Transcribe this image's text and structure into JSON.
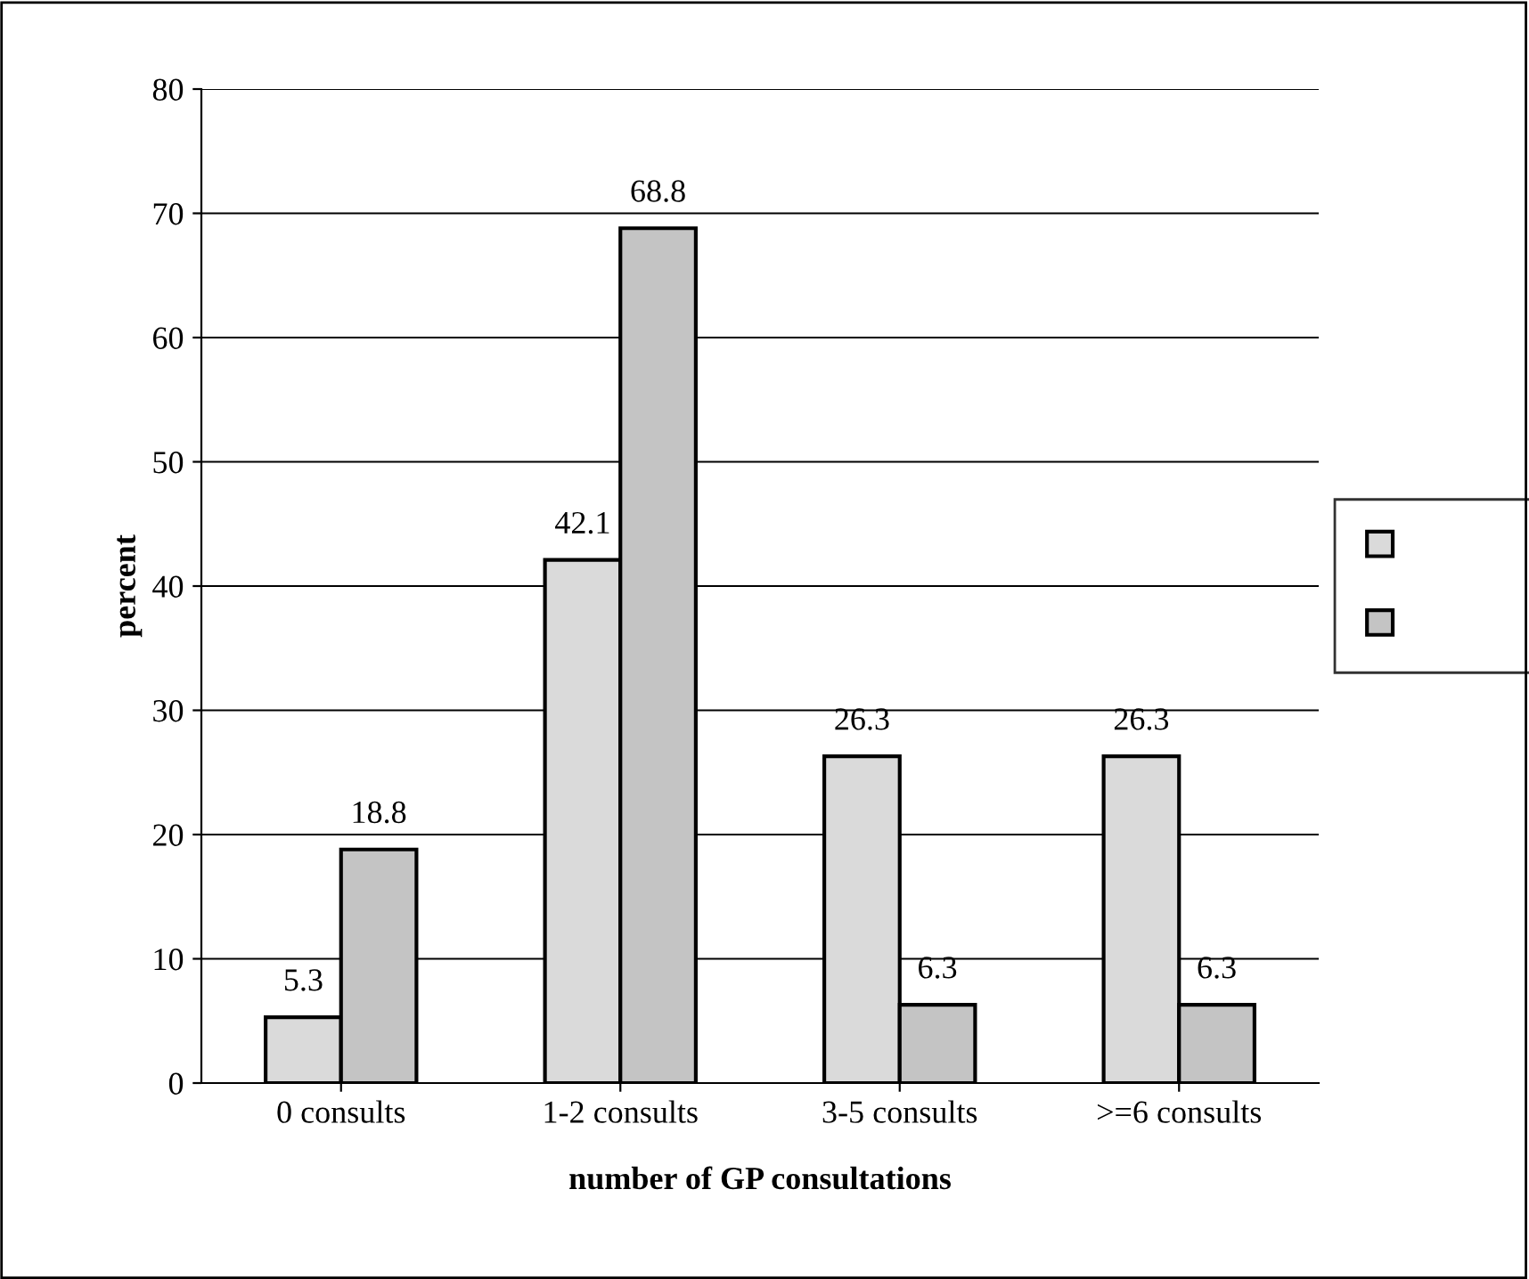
{
  "chart_data": {
    "type": "bar",
    "xlabel": "number of GP consultations",
    "ylabel": "percent",
    "categories": [
      "0 consults",
      "1-2 consults",
      "3-5 consults",
      ">=6 consults"
    ],
    "series": [
      {
        "color": "#dadada",
        "values": [
          5.3,
          42.1,
          26.3,
          26.3
        ]
      },
      {
        "color": "#c4c4c4",
        "values": [
          18.8,
          68.8,
          6.3,
          6.3
        ]
      }
    ],
    "ylim": [
      0,
      80
    ],
    "yticks": [
      0,
      10,
      20,
      30,
      40,
      50,
      60,
      70,
      80
    ],
    "grid": "y",
    "data_labels": true
  }
}
